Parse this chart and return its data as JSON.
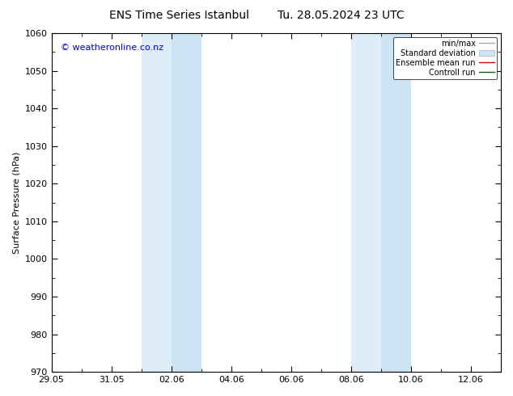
{
  "title_left": "ENS Time Series Istanbul",
  "title_right": "Tu. 28.05.2024 23 UTC",
  "ylabel": "Surface Pressure (hPa)",
  "ylim": [
    970,
    1060
  ],
  "yticks": [
    970,
    980,
    990,
    1000,
    1010,
    1020,
    1030,
    1040,
    1050,
    1060
  ],
  "xlim_start_days": 0,
  "xlim_end_days": 15,
  "xtick_labels": [
    "29.05",
    "31.05",
    "02.06",
    "04.06",
    "06.06",
    "08.06",
    "10.06",
    "12.06"
  ],
  "xtick_offsets": [
    0,
    2,
    4,
    6,
    8,
    10,
    12,
    14
  ],
  "shaded_bands": [
    {
      "xstart": 3.0,
      "xend": 4.0,
      "color": "#ddeef8"
    },
    {
      "xstart": 4.0,
      "xend": 5.0,
      "color": "#cce4f4"
    },
    {
      "xstart": 10.0,
      "xend": 11.0,
      "color": "#ddeef8"
    },
    {
      "xstart": 11.0,
      "xend": 12.0,
      "color": "#cce4f4"
    }
  ],
  "copyright_text": "© weatheronline.co.nz",
  "legend_entries": [
    {
      "label": "min/max",
      "color": "#aaaaaa",
      "lw": 1.0,
      "type": "line"
    },
    {
      "label": "Standard deviation",
      "color": "#ccddee",
      "type": "band"
    },
    {
      "label": "Ensemble mean run",
      "color": "#cc0000",
      "lw": 1.0,
      "type": "line"
    },
    {
      "label": "Controll run",
      "color": "#006600",
      "lw": 1.0,
      "type": "line"
    }
  ],
  "background_color": "#ffffff",
  "plot_bg_color": "#ffffff",
  "title_fontsize": 10,
  "axis_label_fontsize": 8,
  "tick_fontsize": 8,
  "copyright_color": "#0000cc",
  "copyright_fontsize": 8
}
